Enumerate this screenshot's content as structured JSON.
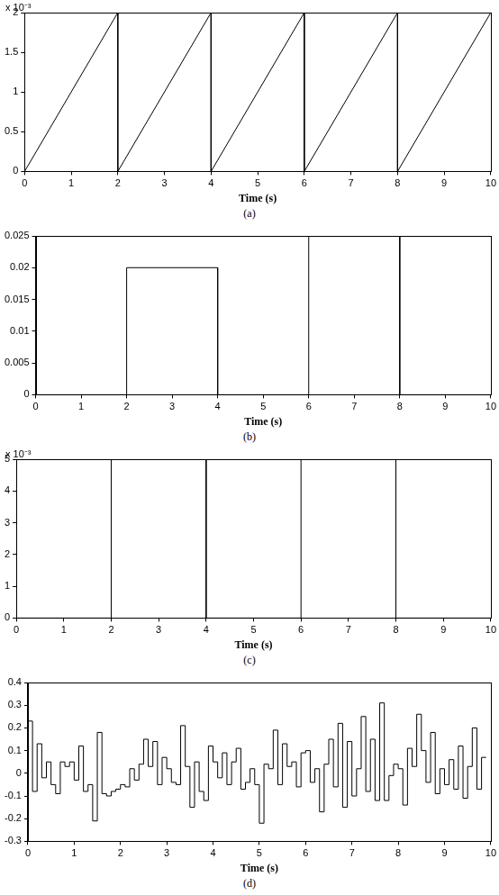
{
  "chart_data": [
    {
      "type": "line",
      "x_label": "Time (s)",
      "subtitle": "(a)",
      "annotation": "x 10⁻³",
      "x": [
        0,
        2,
        2,
        4,
        4,
        6,
        6,
        8,
        8,
        10
      ],
      "values": [
        0,
        0.002,
        0,
        0.002,
        0,
        0.002,
        0,
        0.002,
        0,
        0.002
      ],
      "xlim": [
        0,
        10
      ],
      "xticks": [
        0,
        1,
        2,
        3,
        4,
        5,
        6,
        7,
        8,
        9,
        10
      ],
      "ylim": [
        0,
        0.002
      ],
      "yticks": [
        0,
        {
          "value": 0.0005,
          "label": "0.5"
        },
        {
          "value": 0.001,
          "label": "1"
        },
        {
          "value": 0.0015,
          "label": "1.5"
        },
        {
          "value": 0.002,
          "label": "2"
        }
      ],
      "color": "#000000",
      "line_style": "solid",
      "grid": false
    },
    {
      "type": "line",
      "x_label": "Time (s)",
      "subtitle": "(b)",
      "x": [
        0,
        2,
        2,
        4,
        4,
        6,
        6,
        8,
        8,
        10
      ],
      "values": [
        0,
        0,
        0.02,
        0.02,
        0,
        0,
        0.025,
        0.025,
        0,
        0
      ],
      "xlim": [
        0,
        10
      ],
      "xticks": [
        0,
        1,
        2,
        3,
        4,
        5,
        6,
        7,
        8,
        9,
        10
      ],
      "ylim": [
        0,
        0.025
      ],
      "yticks": [
        0,
        0.005,
        0.01,
        0.015,
        0.02,
        0.025
      ],
      "color": "#000000",
      "line_style": "solid",
      "grid": false
    },
    {
      "type": "line",
      "x_label": "Time (s)",
      "subtitle": "(c)",
      "annotation": "x 10⁻³",
      "x": [
        0,
        2,
        2,
        4,
        4,
        6,
        6,
        8,
        8,
        10
      ],
      "values": [
        0,
        0,
        0.005,
        0.005,
        0,
        0,
        0.005,
        0.005,
        0,
        0
      ],
      "xlim": [
        0,
        10
      ],
      "xticks": [
        0,
        1,
        2,
        3,
        4,
        5,
        6,
        7,
        8,
        9,
        10
      ],
      "ylim": [
        0,
        0.005
      ],
      "yticks": [
        0,
        {
          "value": 0.001,
          "label": "1"
        },
        {
          "value": 0.002,
          "label": "2"
        },
        {
          "value": 0.003,
          "label": "3"
        },
        {
          "value": 0.004,
          "label": "4"
        },
        {
          "value": 0.005,
          "label": "5"
        }
      ],
      "color": "#000000",
      "line_style": "solid",
      "grid": false
    },
    {
      "type": "line",
      "x_label": "Time (s)",
      "subtitle": "(d)",
      "x": [
        0,
        0.1,
        0.2,
        0.3,
        0.4,
        0.5,
        0.6,
        0.7,
        0.8,
        0.9,
        1,
        1.1,
        1.2,
        1.3,
        1.4,
        1.5,
        1.6,
        1.7,
        1.8,
        1.9,
        2,
        2.1,
        2.2,
        2.3,
        2.4,
        2.5,
        2.6,
        2.7,
        2.8,
        2.9,
        3,
        3.1,
        3.2,
        3.3,
        3.4,
        3.5,
        3.6,
        3.7,
        3.8,
        3.9,
        4,
        4.1,
        4.2,
        4.3,
        4.4,
        4.5,
        4.6,
        4.7,
        4.8,
        4.9,
        5,
        5.1,
        5.2,
        5.3,
        5.4,
        5.5,
        5.6,
        5.7,
        5.8,
        5.9,
        6,
        6.1,
        6.2,
        6.3,
        6.4,
        6.5,
        6.6,
        6.7,
        6.8,
        6.9,
        7,
        7.1,
        7.2,
        7.3,
        7.4,
        7.5,
        7.6,
        7.7,
        7.8,
        7.9,
        8,
        8.1,
        8.2,
        8.3,
        8.4,
        8.5,
        8.6,
        8.7,
        8.8,
        8.9,
        9,
        9.1,
        9.2,
        9.3,
        9.4,
        9.5,
        9.6,
        9.7,
        9.8,
        9.9
      ],
      "values": [
        0.04,
        0.23,
        -0.08,
        0.13,
        -0.02,
        0.05,
        -0.05,
        -0.09,
        0.05,
        0.03,
        0.05,
        -0.03,
        0.12,
        -0.08,
        -0.05,
        -0.21,
        0.18,
        -0.09,
        -0.1,
        -0.08,
        -0.07,
        -0.05,
        -0.06,
        0.02,
        -0.03,
        0.04,
        0.15,
        0.03,
        0.14,
        -0.05,
        0.07,
        0.02,
        -0.04,
        -0.05,
        0.21,
        0.03,
        -0.15,
        0.05,
        -0.08,
        -0.12,
        0.12,
        0.05,
        -0.02,
        0.09,
        -0.05,
        0.05,
        0.11,
        -0.07,
        -0.04,
        0.02,
        -0.05,
        -0.22,
        0.04,
        0.02,
        0.19,
        -0.05,
        0.13,
        0.03,
        0.05,
        -0.06,
        0.09,
        0.1,
        -0.04,
        0.02,
        -0.17,
        0.04,
        0.15,
        -0.06,
        0.22,
        -0.15,
        0.14,
        -0.1,
        0.02,
        0.25,
        -0.08,
        0.15,
        -0.12,
        0.31,
        -0.12,
        -0.01,
        0.04,
        0.02,
        -0.14,
        0.11,
        0.03,
        0.26,
        0.1,
        -0.04,
        0.18,
        -0.09,
        0.02,
        -0.05,
        0.06,
        -0.07,
        0.12,
        -0.11,
        0.03,
        0.2,
        -0.07,
        0.07
      ],
      "xlim": [
        0,
        10
      ],
      "xticks": [
        0,
        1,
        2,
        3,
        4,
        5,
        6,
        7,
        8,
        9,
        10
      ],
      "ylim": [
        -0.3,
        0.4
      ],
      "yticks": [
        -0.3,
        -0.2,
        -0.1,
        0,
        0.1,
        0.2,
        0.3,
        0.4
      ],
      "color": "#000000",
      "line_style": "steps",
      "grid": false
    }
  ]
}
